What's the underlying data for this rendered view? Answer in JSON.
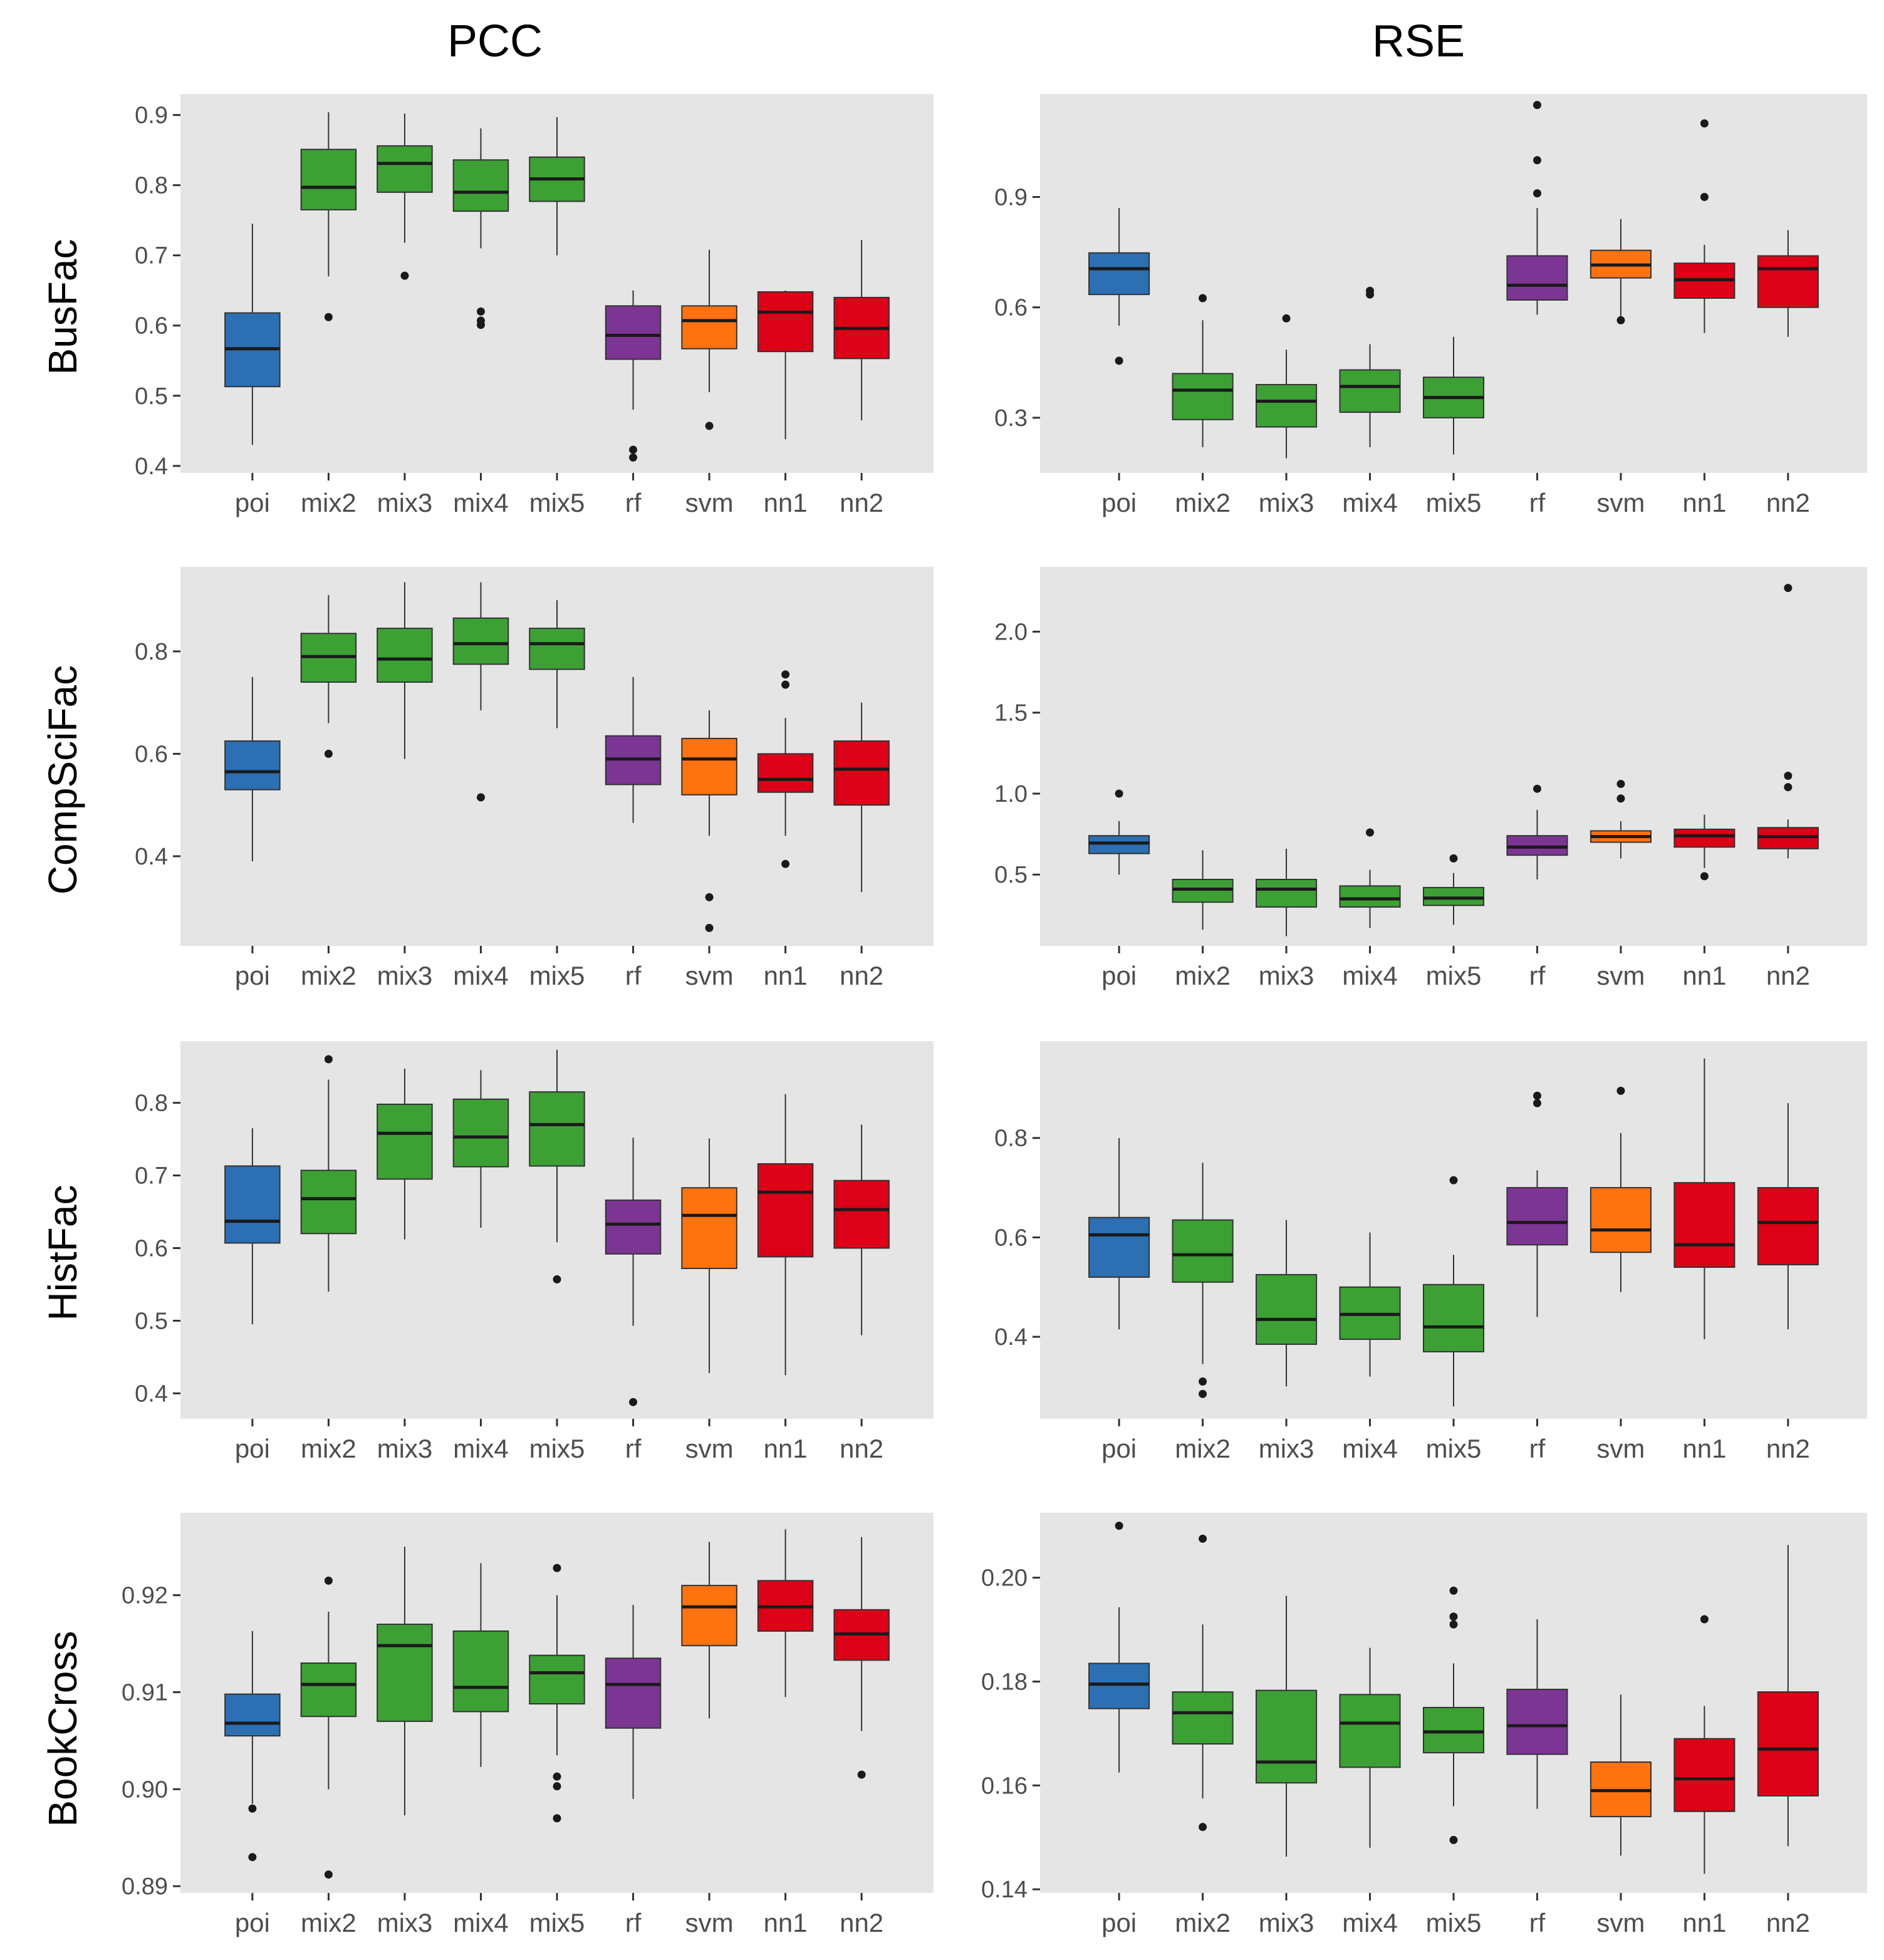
{
  "column_titles": [
    "PCC",
    "RSE"
  ],
  "row_titles": [
    "BusFac",
    "CompSciFac",
    "HistFac",
    "BookCross"
  ],
  "series_colors": {
    "poi": "#2C6FB3",
    "mix2": "#3DA035",
    "mix3": "#3DA035",
    "mix4": "#3DA035",
    "mix5": "#3DA035",
    "rf": "#7D3594",
    "svm": "#FF7210",
    "nn1": "#DC0116",
    "nn2": "#DC0116"
  },
  "chart_data": [
    {
      "type": "boxplot",
      "row": "BusFac",
      "metric": "PCC",
      "title": "",
      "categories": [
        "poi",
        "mix2",
        "mix3",
        "mix4",
        "mix5",
        "rf",
        "svm",
        "nn1",
        "nn2"
      ],
      "ylim": [
        0.39,
        0.93
      ],
      "yticks": [
        0.4,
        0.5,
        0.6,
        0.7,
        0.8,
        0.9
      ],
      "tick_labels": [
        "0.4",
        "0.5",
        "0.6",
        "0.7",
        "0.8",
        "0.9"
      ],
      "boxes": [
        {
          "min": 0.43,
          "q1": 0.513,
          "median": 0.567,
          "q3": 0.618,
          "max": 0.745,
          "outliers": []
        },
        {
          "min": 0.67,
          "q1": 0.765,
          "median": 0.797,
          "q3": 0.851,
          "max": 0.904,
          "outliers": [
            0.612
          ]
        },
        {
          "min": 0.718,
          "q1": 0.79,
          "median": 0.831,
          "q3": 0.856,
          "max": 0.902,
          "outliers": [
            0.671
          ]
        },
        {
          "min": 0.71,
          "q1": 0.763,
          "median": 0.79,
          "q3": 0.836,
          "max": 0.881,
          "outliers": [
            0.62,
            0.607,
            0.601
          ]
        },
        {
          "min": 0.7,
          "q1": 0.777,
          "median": 0.809,
          "q3": 0.84,
          "max": 0.897,
          "outliers": []
        },
        {
          "min": 0.48,
          "q1": 0.552,
          "median": 0.586,
          "q3": 0.628,
          "max": 0.65,
          "outliers": [
            0.423,
            0.412
          ]
        },
        {
          "min": 0.505,
          "q1": 0.567,
          "median": 0.607,
          "q3": 0.628,
          "max": 0.708,
          "outliers": [
            0.457
          ]
        },
        {
          "min": 0.438,
          "q1": 0.563,
          "median": 0.619,
          "q3": 0.648,
          "max": 0.65,
          "outliers": []
        },
        {
          "min": 0.465,
          "q1": 0.553,
          "median": 0.596,
          "q3": 0.64,
          "max": 0.722,
          "outliers": []
        }
      ]
    },
    {
      "type": "boxplot",
      "row": "BusFac",
      "metric": "RSE",
      "title": "",
      "categories": [
        "poi",
        "mix2",
        "mix3",
        "mix4",
        "mix5",
        "rf",
        "svm",
        "nn1",
        "nn2"
      ],
      "ylim": [
        0.15,
        1.18
      ],
      "yticks": [
        0.3,
        0.6,
        0.9
      ],
      "tick_labels": [
        "0.3",
        "0.6",
        "0.9"
      ],
      "boxes": [
        {
          "min": 0.55,
          "q1": 0.635,
          "median": 0.705,
          "q3": 0.748,
          "max": 0.87,
          "outliers": [
            0.455
          ]
        },
        {
          "min": 0.22,
          "q1": 0.295,
          "median": 0.375,
          "q3": 0.42,
          "max": 0.565,
          "outliers": [
            0.625
          ]
        },
        {
          "min": 0.19,
          "q1": 0.275,
          "median": 0.345,
          "q3": 0.39,
          "max": 0.485,
          "outliers": [
            0.57
          ]
        },
        {
          "min": 0.22,
          "q1": 0.315,
          "median": 0.385,
          "q3": 0.43,
          "max": 0.5,
          "outliers": [
            0.645,
            0.635
          ]
        },
        {
          "min": 0.2,
          "q1": 0.3,
          "median": 0.355,
          "q3": 0.41,
          "max": 0.52,
          "outliers": []
        },
        {
          "min": 0.58,
          "q1": 0.62,
          "median": 0.66,
          "q3": 0.74,
          "max": 0.87,
          "outliers": [
            1.15,
            1.0,
            0.91
          ]
        },
        {
          "min": 0.57,
          "q1": 0.68,
          "median": 0.715,
          "q3": 0.755,
          "max": 0.84,
          "outliers": [
            0.565
          ]
        },
        {
          "min": 0.53,
          "q1": 0.625,
          "median": 0.675,
          "q3": 0.72,
          "max": 0.77,
          "outliers": [
            1.1,
            0.9
          ]
        },
        {
          "min": 0.52,
          "q1": 0.6,
          "median": 0.705,
          "q3": 0.74,
          "max": 0.81,
          "outliers": []
        }
      ]
    },
    {
      "type": "boxplot",
      "row": "CompSciFac",
      "metric": "PCC",
      "title": "",
      "categories": [
        "poi",
        "mix2",
        "mix3",
        "mix4",
        "mix5",
        "rf",
        "svm",
        "nn1",
        "nn2"
      ],
      "ylim": [
        0.225,
        0.965
      ],
      "yticks": [
        0.4,
        0.6,
        0.8
      ],
      "tick_labels": [
        "0.4",
        "0.6",
        "0.8"
      ],
      "boxes": [
        {
          "min": 0.39,
          "q1": 0.53,
          "median": 0.565,
          "q3": 0.625,
          "max": 0.75,
          "outliers": []
        },
        {
          "min": 0.66,
          "q1": 0.74,
          "median": 0.79,
          "q3": 0.835,
          "max": 0.91,
          "outliers": [
            0.6
          ]
        },
        {
          "min": 0.59,
          "q1": 0.74,
          "median": 0.785,
          "q3": 0.845,
          "max": 0.935,
          "outliers": []
        },
        {
          "min": 0.685,
          "q1": 0.775,
          "median": 0.815,
          "q3": 0.865,
          "max": 0.935,
          "outliers": [
            0.515
          ]
        },
        {
          "min": 0.65,
          "q1": 0.765,
          "median": 0.815,
          "q3": 0.845,
          "max": 0.9,
          "outliers": []
        },
        {
          "min": 0.465,
          "q1": 0.54,
          "median": 0.59,
          "q3": 0.635,
          "max": 0.75,
          "outliers": []
        },
        {
          "min": 0.44,
          "q1": 0.52,
          "median": 0.59,
          "q3": 0.63,
          "max": 0.685,
          "outliers": [
            0.32,
            0.26
          ]
        },
        {
          "min": 0.44,
          "q1": 0.525,
          "median": 0.55,
          "q3": 0.6,
          "max": 0.67,
          "outliers": [
            0.755,
            0.735,
            0.385
          ]
        },
        {
          "min": 0.33,
          "q1": 0.5,
          "median": 0.57,
          "q3": 0.625,
          "max": 0.7,
          "outliers": []
        }
      ]
    },
    {
      "type": "boxplot",
      "row": "CompSciFac",
      "metric": "RSE",
      "title": "",
      "categories": [
        "poi",
        "mix2",
        "mix3",
        "mix4",
        "mix5",
        "rf",
        "svm",
        "nn1",
        "nn2"
      ],
      "ylim": [
        0.06,
        2.4
      ],
      "yticks": [
        0.5,
        1.0,
        1.5,
        2.0
      ],
      "tick_labels": [
        "0.5",
        "1.0",
        "1.5",
        "2.0"
      ],
      "boxes": [
        {
          "min": 0.5,
          "q1": 0.63,
          "median": 0.695,
          "q3": 0.74,
          "max": 0.83,
          "outliers": [
            1.0
          ]
        },
        {
          "min": 0.16,
          "q1": 0.33,
          "median": 0.41,
          "q3": 0.47,
          "max": 0.65,
          "outliers": []
        },
        {
          "min": 0.12,
          "q1": 0.3,
          "median": 0.41,
          "q3": 0.47,
          "max": 0.66,
          "outliers": []
        },
        {
          "min": 0.17,
          "q1": 0.3,
          "median": 0.35,
          "q3": 0.43,
          "max": 0.53,
          "outliers": [
            0.76
          ]
        },
        {
          "min": 0.19,
          "q1": 0.31,
          "median": 0.355,
          "q3": 0.42,
          "max": 0.51,
          "outliers": [
            0.6
          ]
        },
        {
          "min": 0.47,
          "q1": 0.62,
          "median": 0.67,
          "q3": 0.74,
          "max": 0.9,
          "outliers": [
            1.03
          ]
        },
        {
          "min": 0.6,
          "q1": 0.7,
          "median": 0.735,
          "q3": 0.77,
          "max": 0.83,
          "outliers": [
            1.06,
            0.97
          ]
        },
        {
          "min": 0.54,
          "q1": 0.67,
          "median": 0.74,
          "q3": 0.78,
          "max": 0.87,
          "outliers": [
            0.49
          ]
        },
        {
          "min": 0.6,
          "q1": 0.66,
          "median": 0.735,
          "q3": 0.79,
          "max": 0.84,
          "outliers": [
            2.27,
            1.11,
            1.04
          ]
        }
      ]
    },
    {
      "type": "boxplot",
      "row": "HistFac",
      "metric": "PCC",
      "title": "",
      "categories": [
        "poi",
        "mix2",
        "mix3",
        "mix4",
        "mix5",
        "rf",
        "svm",
        "nn1",
        "nn2"
      ],
      "ylim": [
        0.365,
        0.885
      ],
      "yticks": [
        0.4,
        0.5,
        0.6,
        0.7,
        0.8
      ],
      "tick_labels": [
        "0.4",
        "0.5",
        "0.6",
        "0.7",
        "0.8"
      ],
      "boxes": [
        {
          "min": 0.495,
          "q1": 0.607,
          "median": 0.637,
          "q3": 0.713,
          "max": 0.765,
          "outliers": []
        },
        {
          "min": 0.54,
          "q1": 0.62,
          "median": 0.668,
          "q3": 0.707,
          "max": 0.832,
          "outliers": [
            0.86
          ]
        },
        {
          "min": 0.612,
          "q1": 0.695,
          "median": 0.758,
          "q3": 0.798,
          "max": 0.847,
          "outliers": []
        },
        {
          "min": 0.628,
          "q1": 0.712,
          "median": 0.753,
          "q3": 0.805,
          "max": 0.845,
          "outliers": []
        },
        {
          "min": 0.608,
          "q1": 0.713,
          "median": 0.77,
          "q3": 0.815,
          "max": 0.873,
          "outliers": [
            0.557
          ]
        },
        {
          "min": 0.493,
          "q1": 0.592,
          "median": 0.633,
          "q3": 0.666,
          "max": 0.752,
          "outliers": [
            0.388
          ]
        },
        {
          "min": 0.428,
          "q1": 0.572,
          "median": 0.645,
          "q3": 0.683,
          "max": 0.751,
          "outliers": []
        },
        {
          "min": 0.425,
          "q1": 0.588,
          "median": 0.677,
          "q3": 0.716,
          "max": 0.812,
          "outliers": []
        },
        {
          "min": 0.48,
          "q1": 0.6,
          "median": 0.653,
          "q3": 0.693,
          "max": 0.77,
          "outliers": []
        }
      ]
    },
    {
      "type": "boxplot",
      "row": "HistFac",
      "metric": "RSE",
      "title": "",
      "categories": [
        "poi",
        "mix2",
        "mix3",
        "mix4",
        "mix5",
        "rf",
        "svm",
        "nn1",
        "nn2"
      ],
      "ylim": [
        0.235,
        0.995
      ],
      "yticks": [
        0.4,
        0.6,
        0.8
      ],
      "tick_labels": [
        "0.4",
        "0.6",
        "0.8"
      ],
      "boxes": [
        {
          "min": 0.415,
          "q1": 0.52,
          "median": 0.605,
          "q3": 0.64,
          "max": 0.8,
          "outliers": []
        },
        {
          "min": 0.345,
          "q1": 0.51,
          "median": 0.565,
          "q3": 0.635,
          "max": 0.75,
          "outliers": [
            0.31,
            0.285
          ]
        },
        {
          "min": 0.3,
          "q1": 0.385,
          "median": 0.435,
          "q3": 0.525,
          "max": 0.635,
          "outliers": []
        },
        {
          "min": 0.32,
          "q1": 0.395,
          "median": 0.445,
          "q3": 0.5,
          "max": 0.61,
          "outliers": []
        },
        {
          "min": 0.26,
          "q1": 0.37,
          "median": 0.42,
          "q3": 0.505,
          "max": 0.565,
          "outliers": [
            0.715
          ]
        },
        {
          "min": 0.44,
          "q1": 0.585,
          "median": 0.63,
          "q3": 0.7,
          "max": 0.735,
          "outliers": [
            0.885,
            0.87
          ]
        },
        {
          "min": 0.49,
          "q1": 0.57,
          "median": 0.615,
          "q3": 0.7,
          "max": 0.81,
          "outliers": [
            0.895
          ]
        },
        {
          "min": 0.395,
          "q1": 0.54,
          "median": 0.585,
          "q3": 0.71,
          "max": 0.96,
          "outliers": []
        },
        {
          "min": 0.415,
          "q1": 0.545,
          "median": 0.63,
          "q3": 0.7,
          "max": 0.87,
          "outliers": []
        }
      ]
    },
    {
      "type": "boxplot",
      "row": "BookCross",
      "metric": "PCC",
      "title": "",
      "categories": [
        "poi",
        "mix2",
        "mix3",
        "mix4",
        "mix5",
        "rf",
        "svm",
        "nn1",
        "nn2"
      ],
      "ylim": [
        0.8893,
        0.9285
      ],
      "yticks": [
        0.89,
        0.9,
        0.91,
        0.92
      ],
      "tick_labels": [
        "0.89",
        "0.90",
        "0.91",
        "0.92"
      ],
      "boxes": [
        {
          "min": 0.8985,
          "q1": 0.9055,
          "median": 0.9068,
          "q3": 0.9098,
          "max": 0.9163,
          "outliers": [
            0.898,
            0.893
          ]
        },
        {
          "min": 0.9,
          "q1": 0.9075,
          "median": 0.9108,
          "q3": 0.913,
          "max": 0.9183,
          "outliers": [
            0.9215,
            0.8912
          ]
        },
        {
          "min": 0.8973,
          "q1": 0.907,
          "median": 0.9148,
          "q3": 0.917,
          "max": 0.925,
          "outliers": []
        },
        {
          "min": 0.9023,
          "q1": 0.908,
          "median": 0.9105,
          "q3": 0.9163,
          "max": 0.9233,
          "outliers": []
        },
        {
          "min": 0.9035,
          "q1": 0.9088,
          "median": 0.912,
          "q3": 0.9138,
          "max": 0.92,
          "outliers": [
            0.9228,
            0.9013,
            0.9003,
            0.897
          ]
        },
        {
          "min": 0.899,
          "q1": 0.9063,
          "median": 0.9108,
          "q3": 0.9135,
          "max": 0.919,
          "outliers": []
        },
        {
          "min": 0.9073,
          "q1": 0.9148,
          "median": 0.9188,
          "q3": 0.921,
          "max": 0.9255,
          "outliers": []
        },
        {
          "min": 0.9095,
          "q1": 0.9163,
          "median": 0.9188,
          "q3": 0.9215,
          "max": 0.9268,
          "outliers": []
        },
        {
          "min": 0.906,
          "q1": 0.9133,
          "median": 0.916,
          "q3": 0.9185,
          "max": 0.926,
          "outliers": [
            0.9015
          ]
        }
      ]
    },
    {
      "type": "boxplot",
      "row": "BookCross",
      "metric": "RSE",
      "title": "",
      "categories": [
        "poi",
        "mix2",
        "mix3",
        "mix4",
        "mix5",
        "rf",
        "svm",
        "nn1",
        "nn2"
      ],
      "ylim": [
        0.1393,
        0.2125
      ],
      "yticks": [
        0.14,
        0.16,
        0.18,
        0.2
      ],
      "tick_labels": [
        "0.14",
        "0.16",
        "0.18",
        "0.20"
      ],
      "boxes": [
        {
          "min": 0.1625,
          "q1": 0.1748,
          "median": 0.1795,
          "q3": 0.1835,
          "max": 0.1943,
          "outliers": [
            0.21
          ]
        },
        {
          "min": 0.1575,
          "q1": 0.168,
          "median": 0.174,
          "q3": 0.178,
          "max": 0.191,
          "outliers": [
            0.2075,
            0.152
          ]
        },
        {
          "min": 0.1463,
          "q1": 0.1605,
          "median": 0.1645,
          "q3": 0.1783,
          "max": 0.1965,
          "outliers": []
        },
        {
          "min": 0.148,
          "q1": 0.1635,
          "median": 0.172,
          "q3": 0.1775,
          "max": 0.1865,
          "outliers": []
        },
        {
          "min": 0.156,
          "q1": 0.1663,
          "median": 0.1703,
          "q3": 0.175,
          "max": 0.1835,
          "outliers": [
            0.1975,
            0.1925,
            0.191,
            0.1495
          ]
        },
        {
          "min": 0.1555,
          "q1": 0.166,
          "median": 0.1715,
          "q3": 0.1785,
          "max": 0.192,
          "outliers": []
        },
        {
          "min": 0.1465,
          "q1": 0.154,
          "median": 0.159,
          "q3": 0.1645,
          "max": 0.1775,
          "outliers": []
        },
        {
          "min": 0.143,
          "q1": 0.155,
          "median": 0.1613,
          "q3": 0.169,
          "max": 0.1753,
          "outliers": [
            0.192
          ]
        },
        {
          "min": 0.1483,
          "q1": 0.158,
          "median": 0.167,
          "q3": 0.178,
          "max": 0.2063,
          "outliers": []
        }
      ]
    }
  ]
}
